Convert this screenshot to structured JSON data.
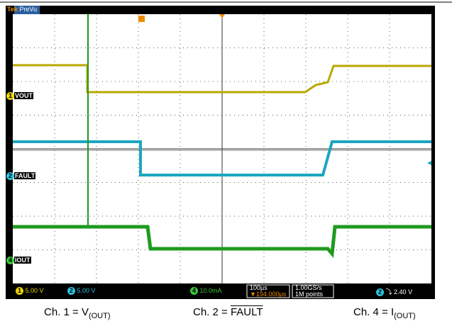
{
  "top_bar": {
    "brand": "Tek",
    "mode": "PreVu"
  },
  "channels": [
    {
      "number": "1",
      "label": "VOUT"
    },
    {
      "number": "2",
      "label": "FAULT"
    },
    {
      "number": "4",
      "label": "IOUT"
    }
  ],
  "status": {
    "ch1_scale": "5.00 V",
    "ch2_scale": "5.00 V",
    "ch4_scale": "10.0mA",
    "timebase": "100µs",
    "trigger_position": "194.000µs",
    "sample_rate": "1.00GS/s",
    "record_length": "1M points",
    "trigger_level": "2.40 V"
  },
  "caption": [
    {
      "prefix": "Ch. 1 = V",
      "subscript": "(OUT)"
    },
    {
      "prefix": "Ch. 2 = ",
      "overlined": "FAULT"
    },
    {
      "prefix": "Ch. 4 = I",
      "subscript": "(OUT)"
    }
  ]
}
